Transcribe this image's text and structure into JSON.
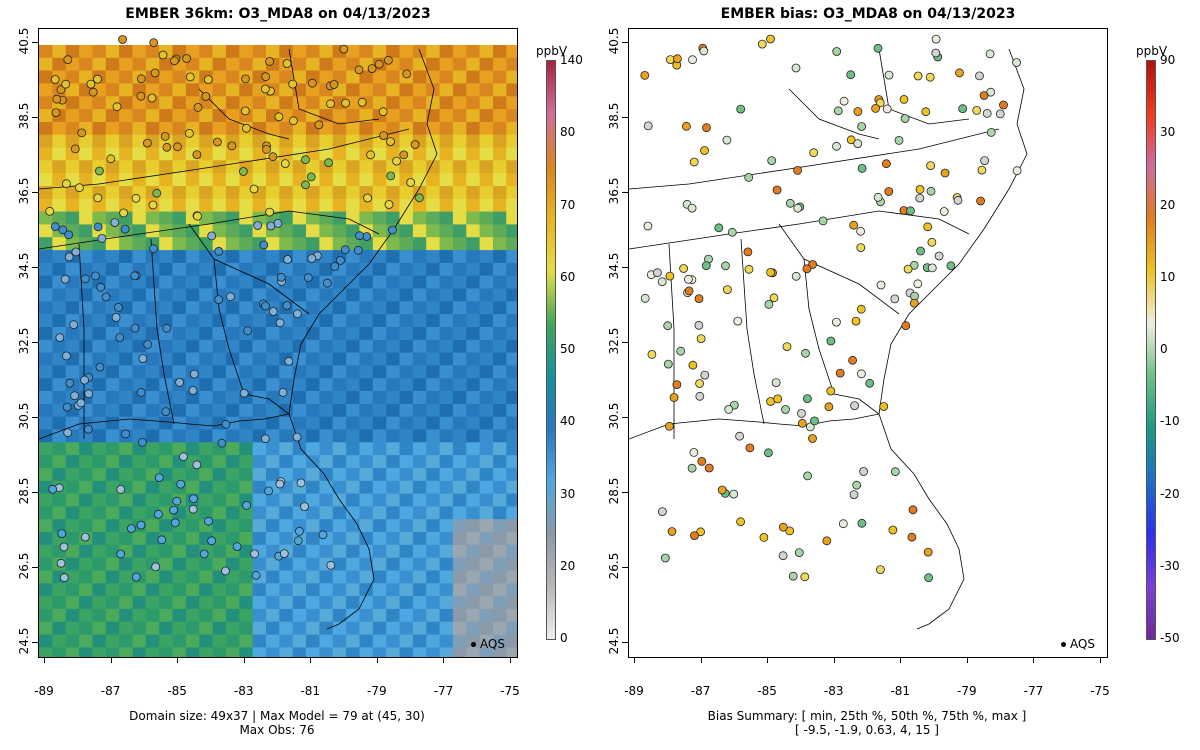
{
  "left_panel": {
    "title": "EMBER 36km: O3_MDA8 on 04/13/2023",
    "footer_line1": "Domain size: 49x37 | Max Model = 79 at (45, 30)",
    "footer_line2": "Max Obs: 76",
    "legend_label": "AQS",
    "colorbar": {
      "unit": "ppbV",
      "labels": [
        "140",
        "80",
        "70",
        "60",
        "50",
        "40",
        "30",
        "20",
        "0"
      ],
      "colors": [
        "#a8243c",
        "#cf6f9a",
        "#d9861e",
        "#e7b323",
        "#e5dd45",
        "#43a55d",
        "#17909c",
        "#2878bd",
        "#4ea8df",
        "#8a9aa8",
        "#b8b8b8",
        "#eeeeee"
      ]
    }
  },
  "right_panel": {
    "title": "EMBER bias: O3_MDA8 on 04/13/2023",
    "footer_line1": "Bias Summary: [ min, 25th %, 50th %, 75th %, max ]",
    "footer_line2": "[ -9.5,   -1.9,   0.63,   4,   15 ]",
    "legend_label": "AQS",
    "colorbar": {
      "unit": "ppbV",
      "labels": [
        "90",
        "30",
        "20",
        "10",
        "0",
        "-10",
        "-20",
        "-30",
        "-50"
      ],
      "colors": [
        "#b01212",
        "#f23a1a",
        "#d06b9c",
        "#e27c1c",
        "#eec321",
        "#f0ede0",
        "#6cc083",
        "#1a9a83",
        "#1b6fc8",
        "#2c2ff0",
        "#7b3fd8",
        "#6e2a99"
      ]
    }
  },
  "axes": {
    "y_ticks": [
      "40.5",
      "38.5",
      "36.5",
      "34.5",
      "32.5",
      "30.5",
      "28.5",
      "26.5",
      "24.5"
    ],
    "x_ticks": [
      "-89",
      "-87",
      "-85",
      "-83",
      "-81",
      "-79",
      "-77",
      "-75"
    ]
  }
}
